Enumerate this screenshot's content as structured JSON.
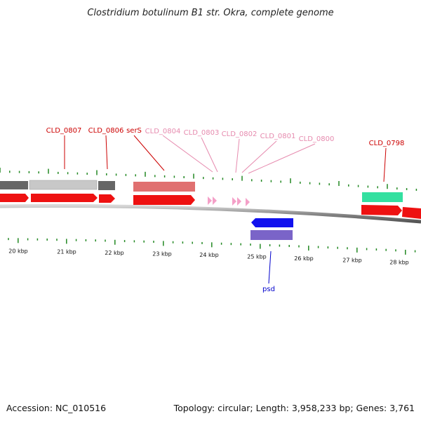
{
  "title": "Clostridium botulinum B1 str. Okra, complete genome",
  "footer": {
    "accession": "Accession: NC_010516",
    "stats": "Topology: circular; Length: 3,958,233 bp; Genes: 3,761"
  },
  "colors": {
    "cds": "#ee1111",
    "cds_dark": "#b00000",
    "rrna_grey": "#666666",
    "rrna_light": "#c8c8c8",
    "trna_pink": "#f4a0c8",
    "ser_salmon": "#e07070",
    "teal": "#33e0a0",
    "blue": "#1111ee",
    "purple": "#7a64c8",
    "tick_green": "#228822",
    "label_red": "#cc0000",
    "label_pink": "#e68aae",
    "label_blue": "#0000cc"
  },
  "kbp_ticks": [
    {
      "kbp": 20,
      "label": "20 kbp"
    },
    {
      "kbp": 21,
      "label": "21 kbp"
    },
    {
      "kbp": 22,
      "label": "22 kbp"
    },
    {
      "kbp": 23,
      "label": "23 kbp"
    },
    {
      "kbp": 24,
      "label": "24 kbp"
    },
    {
      "kbp": 25,
      "label": "25 kbp"
    },
    {
      "kbp": 26,
      "label": "26 kbp"
    },
    {
      "kbp": 27,
      "label": "27 kbp"
    },
    {
      "kbp": 28,
      "label": "28 kbp"
    }
  ],
  "gene_labels": [
    {
      "name": "CLD_0807",
      "kind": "red"
    },
    {
      "name": "CLD_0806",
      "kind": "red"
    },
    {
      "name": "serS",
      "kind": "red"
    },
    {
      "name": "CLD_0804",
      "kind": "pink"
    },
    {
      "name": "CLD_0803",
      "kind": "pink"
    },
    {
      "name": "CLD_0802",
      "kind": "pink"
    },
    {
      "name": "CLD_0801",
      "kind": "pink"
    },
    {
      "name": "CLD_0800",
      "kind": "pink"
    },
    {
      "name": "CLD_0798",
      "kind": "red"
    },
    {
      "name": "psd",
      "kind": "blue"
    }
  ]
}
